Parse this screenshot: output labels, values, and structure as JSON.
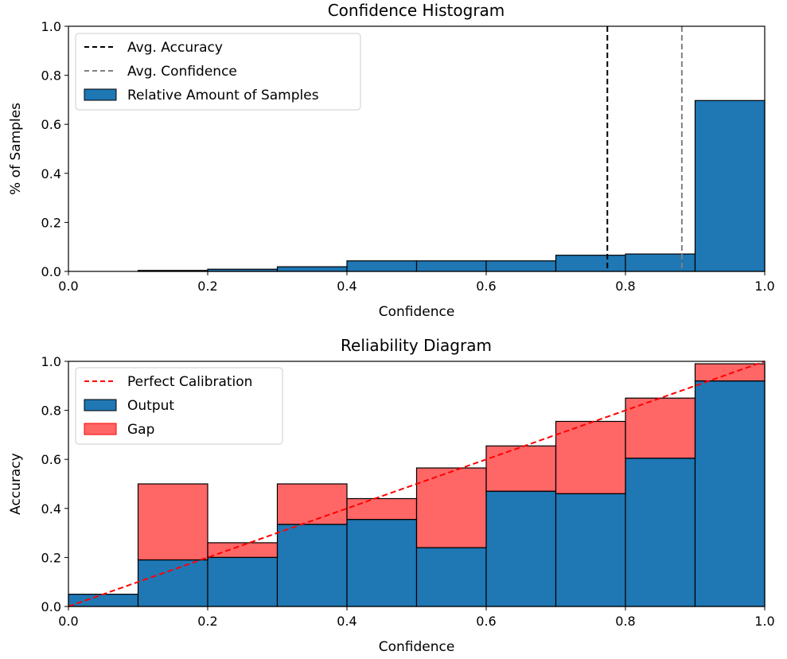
{
  "chart_data": [
    {
      "type": "bar",
      "title": "Confidence Histogram",
      "xlabel": "Confidence",
      "ylabel": "% of Samples",
      "xlim": [
        0.0,
        1.0
      ],
      "ylim": [
        0.0,
        1.0
      ],
      "x_ticks": [
        "0.0",
        "0.2",
        "0.4",
        "0.6",
        "0.8",
        "1.0"
      ],
      "y_ticks": [
        "0.0",
        "0.2",
        "0.4",
        "0.6",
        "0.8",
        "1.0"
      ],
      "bin_edges": [
        0.0,
        0.1,
        0.2,
        0.3,
        0.4,
        0.5,
        0.6,
        0.7,
        0.8,
        0.9,
        1.0
      ],
      "series": [
        {
          "name": "Relative Amount of Samples",
          "values": [
            0.0,
            0.004,
            0.009,
            0.019,
            0.043,
            0.043,
            0.043,
            0.066,
            0.071,
            0.697
          ],
          "color": "#1f77b4"
        }
      ],
      "vlines": [
        {
          "name": "Avg. Accuracy",
          "x": 0.774,
          "color": "#000000"
        },
        {
          "name": "Avg. Confidence",
          "x": 0.881,
          "color": "#808080"
        }
      ],
      "legend_position": "top-left",
      "grid": false
    },
    {
      "type": "bar",
      "title": "Reliability Diagram",
      "xlabel": "Confidence",
      "ylabel": "Accuracy",
      "xlim": [
        0.0,
        1.0
      ],
      "ylim": [
        0.0,
        1.0
      ],
      "x_ticks": [
        "0.0",
        "0.2",
        "0.4",
        "0.6",
        "0.8",
        "1.0"
      ],
      "y_ticks": [
        "0.0",
        "0.2",
        "0.4",
        "0.6",
        "0.8",
        "1.0"
      ],
      "bin_edges": [
        0.0,
        0.1,
        0.2,
        0.3,
        0.4,
        0.5,
        0.6,
        0.7,
        0.8,
        0.9,
        1.0
      ],
      "series": [
        {
          "name": "Output",
          "values": [
            0.05,
            0.19,
            0.2,
            0.335,
            0.355,
            0.24,
            0.47,
            0.46,
            0.605,
            0.92
          ],
          "color": "#1f77b4"
        },
        {
          "name": "Gap",
          "values": [
            0.05,
            0.5,
            0.26,
            0.5,
            0.44,
            0.565,
            0.655,
            0.755,
            0.85,
            0.99
          ],
          "color": "#ff0000",
          "note_bounds": "gap bars span between output and confidence"
        }
      ],
      "reference_line": {
        "name": "Perfect Calibration",
        "from": [
          0.0,
          0.0
        ],
        "to": [
          1.0,
          1.0
        ],
        "color": "#ff0000"
      },
      "legend_position": "top-left",
      "grid": false
    }
  ]
}
